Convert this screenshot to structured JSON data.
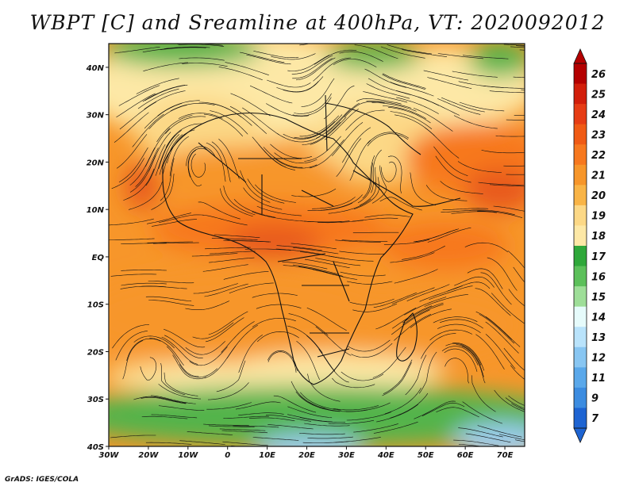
{
  "title": "WBPT [C] and Sreamline at 400hPa, VT: 2020092012",
  "credit": "GrADS: IGES/COLA",
  "lat_labels": [
    "40N",
    "30N",
    "20N",
    "10N",
    "EQ",
    "10S",
    "20S",
    "30S",
    "40S"
  ],
  "lon_labels": [
    "30W",
    "20W",
    "10W",
    "0",
    "10E",
    "20E",
    "30E",
    "40E",
    "50E",
    "60E",
    "70E"
  ],
  "colorbar": {
    "labels": [
      "26",
      "25",
      "24",
      "23",
      "22",
      "21",
      "20",
      "19",
      "18",
      "17",
      "16",
      "15",
      "14",
      "13",
      "12",
      "11",
      "9",
      "7"
    ],
    "colors": [
      "#b40000",
      "#d21e0a",
      "#e63c14",
      "#f05a14",
      "#f7781e",
      "#f7962a",
      "#f9b446",
      "#fcd886",
      "#fde8a6",
      "#2fa83a",
      "#5cc05a",
      "#9ede98",
      "#e6fbfb",
      "#b9e3fb",
      "#88c6f2",
      "#5aa8ea",
      "#3c8ce0",
      "#1e64d2"
    ]
  },
  "map": {
    "lon_range": [
      -30,
      75
    ],
    "lat_range": [
      -40,
      45
    ],
    "fill_colors": {
      "green": "#52b44c",
      "light_yellow": "#fde8a6",
      "pale_yellow": "#fcd886",
      "orange": "#f7962a",
      "dark_orange": "#f7781e",
      "red_orange": "#e85a1a",
      "light_blue": "#9ccdf0",
      "sea_blue": "#c8e9fb"
    }
  }
}
